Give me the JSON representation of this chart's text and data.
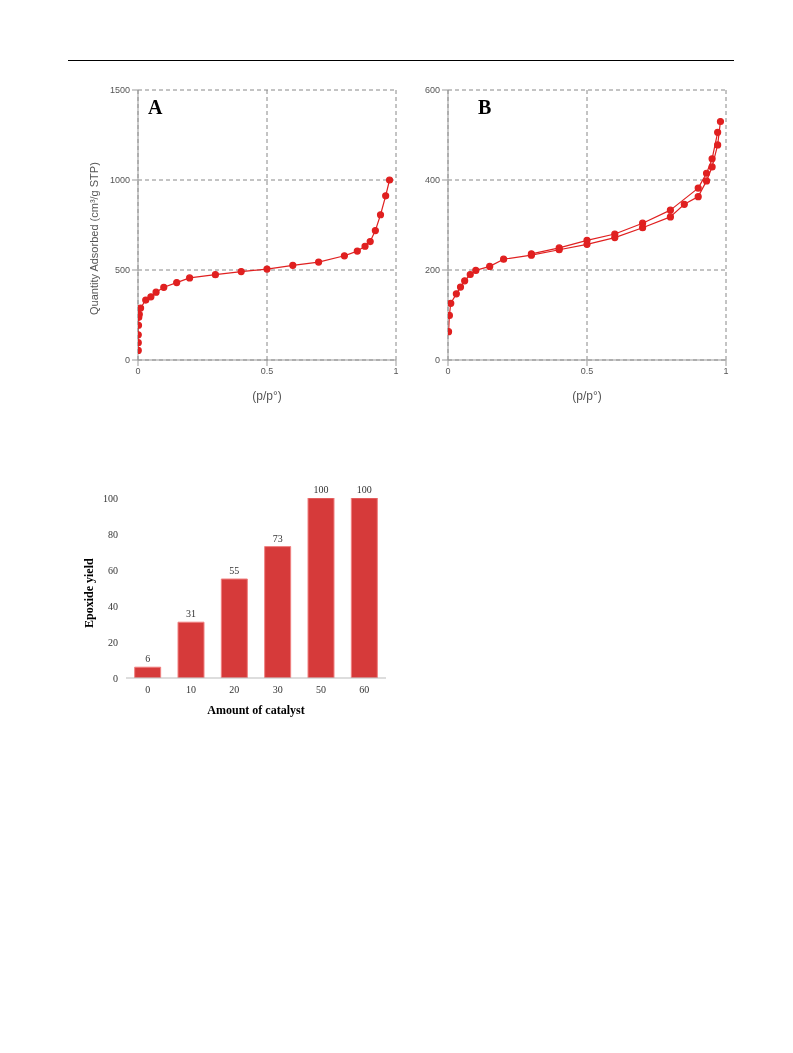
{
  "chart_data": [
    {
      "type": "line",
      "title": "A",
      "xlabel": "(p/p°)",
      "ylabel": "Quantity Adsorbed (cm³/g STP)",
      "xlim": [
        0,
        1
      ],
      "xticks": [
        0,
        0.5,
        1
      ],
      "ylim": [
        0,
        1500
      ],
      "yticks": [
        0,
        500,
        1000,
        1500
      ],
      "grid": true,
      "marker": "circle",
      "line_style": "solid",
      "series": [
        {
          "color": "#e02020",
          "x": [
            0.001,
            0.001,
            0.001,
            0.002,
            0.003,
            0.005,
            0.01,
            0.03,
            0.05,
            0.07,
            0.1,
            0.15,
            0.2,
            0.3,
            0.4,
            0.5,
            0.6,
            0.7,
            0.8,
            0.85,
            0.88,
            0.9,
            0.92,
            0.94,
            0.96,
            0.975
          ],
          "values": [
            53,
            96,
            140,
            193,
            237,
            254,
            289,
            333,
            351,
            377,
            404,
            430,
            456,
            474,
            491,
            505,
            526,
            544,
            579,
            605,
            632,
            658,
            719,
            807,
            912,
            1000
          ]
        }
      ]
    },
    {
      "type": "line",
      "title": "B",
      "xlabel": "(p/p°)",
      "xlim": [
        0,
        1
      ],
      "xticks": [
        0,
        0.5,
        1
      ],
      "ylim": [
        0,
        600
      ],
      "yticks": [
        0,
        200,
        400,
        600
      ],
      "grid": true,
      "marker": "circle",
      "line_style": "solid",
      "series": [
        {
          "color": "#e02020",
          "x": [
            0.002,
            0.005,
            0.01,
            0.03,
            0.045,
            0.06,
            0.08,
            0.1,
            0.15,
            0.2,
            0.3,
            0.4,
            0.5,
            0.6,
            0.7,
            0.8,
            0.85,
            0.9,
            0.93,
            0.95,
            0.97,
            0.98
          ],
          "values": [
            63,
            99,
            126,
            147,
            162,
            176,
            190,
            199,
            208,
            224,
            233,
            245,
            257,
            272,
            294,
            318,
            346,
            363,
            398,
            429,
            478,
            530
          ]
        },
        {
          "color": "#e02020",
          "x": [
            0.3,
            0.4,
            0.5,
            0.6,
            0.7,
            0.8,
            0.9,
            0.93,
            0.95,
            0.97
          ],
          "values": [
            236,
            249,
            266,
            280,
            304,
            333,
            382,
            415,
            447,
            506
          ]
        }
      ]
    },
    {
      "type": "bar",
      "xlabel": "Amount of catalyst",
      "ylabel": "Epoxide yield",
      "categories": [
        "0",
        "10",
        "20",
        "30",
        "50",
        "60"
      ],
      "values": [
        6,
        31,
        55,
        73,
        100,
        100
      ],
      "color": "#d63a3a",
      "ylim": [
        0,
        100
      ],
      "yticks": [
        0,
        20,
        40,
        60,
        80,
        100
      ],
      "data_labels": true
    }
  ]
}
